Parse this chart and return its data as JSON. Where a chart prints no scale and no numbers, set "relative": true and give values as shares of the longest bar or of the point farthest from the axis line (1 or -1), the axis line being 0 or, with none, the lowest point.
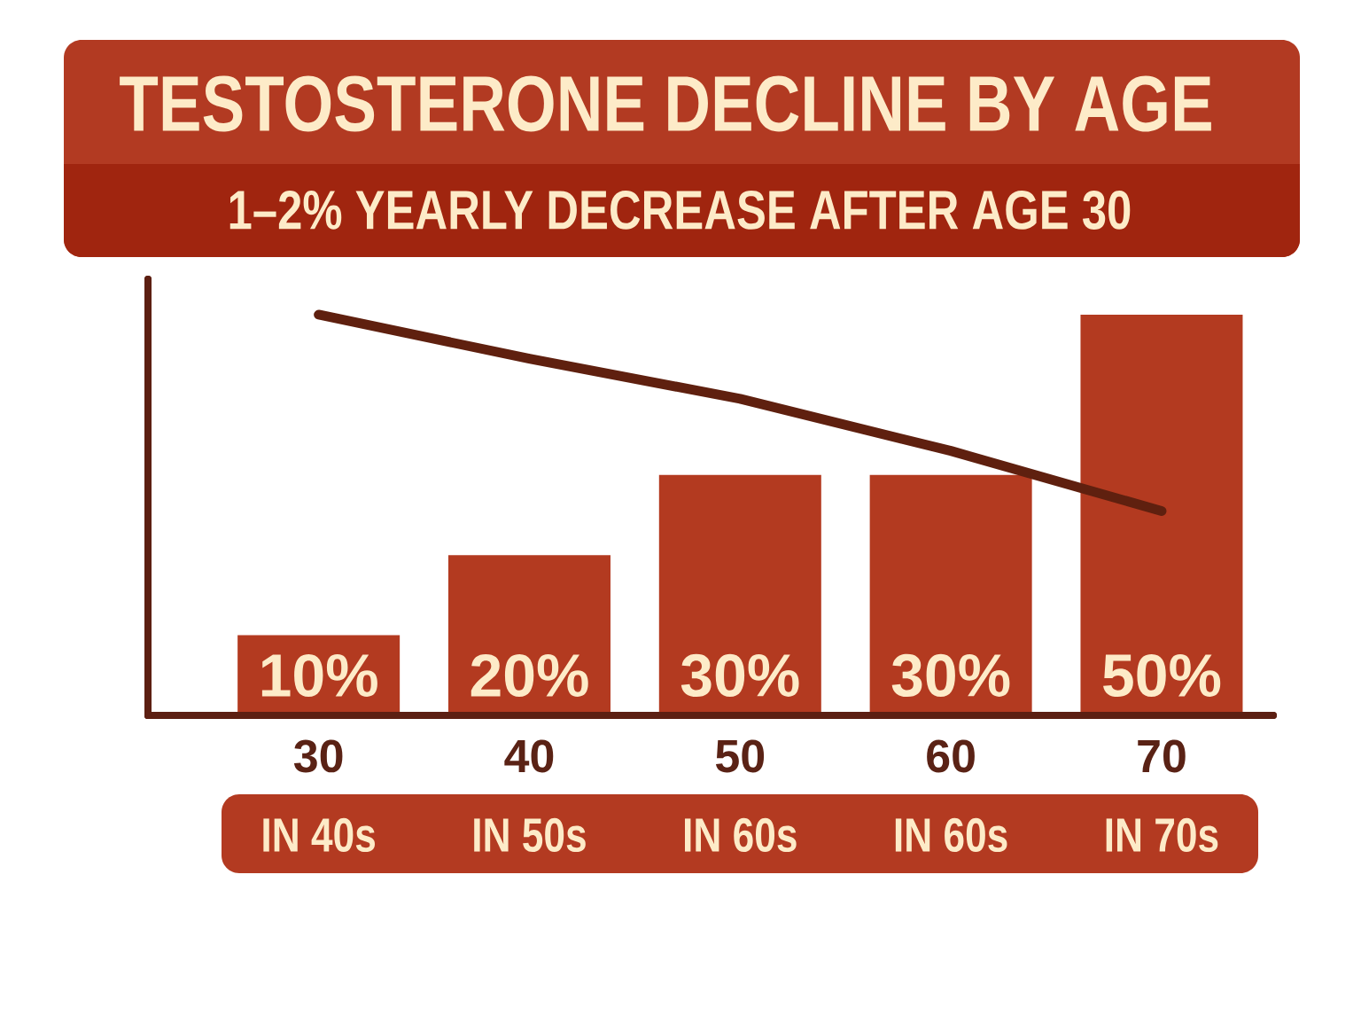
{
  "chart_data": [
    {
      "type": "bar",
      "title": "TESTOSTERONE DECLINE BY AGE",
      "subtitle": "1–2% YEARLY DECREASE AFTER AGE 30",
      "categories": [
        "30",
        "40",
        "50",
        "60",
        "70"
      ],
      "values": [
        10,
        20,
        30,
        30,
        50
      ],
      "value_labels": [
        "10%",
        "20%",
        "30%",
        "30%",
        "50%"
      ],
      "color": "#b33a20",
      "annotations": [
        "IN 40s",
        "IN 50s",
        "IN 60s",
        "IN 60s",
        "IN 70s"
      ]
    },
    {
      "type": "line",
      "relative": true,
      "categories": [
        "30",
        "40",
        "50",
        "60",
        "70"
      ],
      "tick_labels": false,
      "values": [
        1,
        0.89,
        0.79,
        0.66,
        0.51
      ],
      "color": "#5f200f"
    }
  ]
}
